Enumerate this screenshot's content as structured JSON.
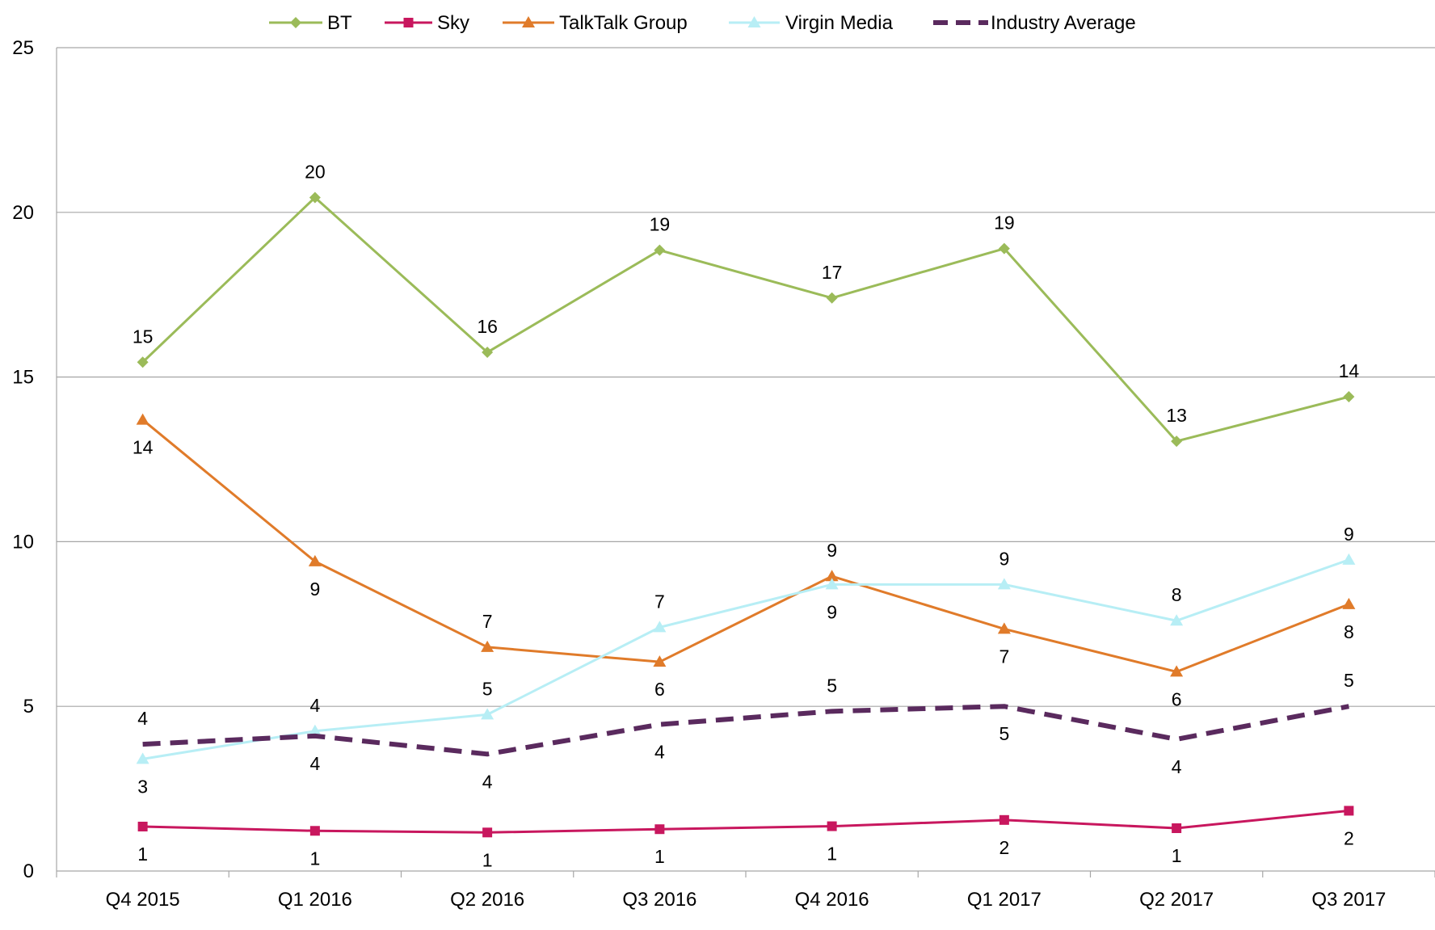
{
  "chart_data": {
    "type": "line",
    "title": "",
    "xlabel": "",
    "ylabel": "",
    "categories": [
      "Q4 2015",
      "Q1 2016",
      "Q2 2016",
      "Q3 2016",
      "Q4 2016",
      "Q1 2017",
      "Q2 2017",
      "Q3 2017"
    ],
    "ylim": [
      0,
      25
    ],
    "yticks": [
      0,
      5,
      10,
      15,
      20,
      25
    ],
    "grid": true,
    "legend_position": "top",
    "series": [
      {
        "name": "BT",
        "color": "#9BBB59",
        "marker": "diamond",
        "dashed": false,
        "values": [
          15.45,
          20.45,
          15.75,
          18.85,
          17.4,
          18.9,
          13.05,
          14.4
        ],
        "labels": [
          "15",
          "20",
          "16",
          "19",
          "17",
          "19",
          "13",
          "14"
        ],
        "label_pos": [
          "above",
          "above",
          "above",
          "above",
          "above",
          "above",
          "above",
          "above"
        ]
      },
      {
        "name": "Sky",
        "color": "#C8175E",
        "marker": "square",
        "dashed": false,
        "values": [
          1.35,
          1.22,
          1.17,
          1.27,
          1.36,
          1.55,
          1.3,
          1.83
        ],
        "labels": [
          "1",
          "1",
          "1",
          "1",
          "1",
          "2",
          "1",
          "2"
        ],
        "label_pos": [
          "below",
          "below",
          "below",
          "below",
          "below",
          "below",
          "below",
          "below"
        ]
      },
      {
        "name": "TalkTalk Group",
        "color": "#E07B2A",
        "marker": "triangle",
        "dashed": false,
        "values": [
          13.7,
          9.4,
          6.8,
          6.35,
          8.95,
          7.35,
          6.05,
          8.1
        ],
        "labels": [
          "14",
          "9",
          "7",
          "6",
          "9",
          "7",
          "6",
          "8"
        ],
        "label_pos": [
          "below",
          "below",
          "above",
          "below",
          "above",
          "below",
          "below",
          "below"
        ]
      },
      {
        "name": "Virgin Media",
        "color": "#B7EEF5",
        "marker": "triangle",
        "dashed": false,
        "values": [
          3.4,
          4.25,
          4.75,
          7.4,
          8.7,
          8.7,
          7.6,
          9.45
        ],
        "labels": [
          "3",
          "4",
          "5",
          "7",
          "9",
          "9",
          "8",
          "9"
        ],
        "label_pos": [
          "below",
          "above",
          "above",
          "above",
          "below",
          "above",
          "above",
          "above"
        ]
      },
      {
        "name": "Industry Average",
        "color": "#5A2A5E",
        "marker": "none",
        "dashed": true,
        "values": [
          3.85,
          4.1,
          3.55,
          4.45,
          4.85,
          5.0,
          4.0,
          5.0
        ],
        "labels": [
          "4",
          "4",
          "4",
          "4",
          "5",
          "5",
          "4",
          "5"
        ],
        "label_pos": [
          "above",
          "below",
          "below",
          "below",
          "above",
          "below",
          "below",
          "above"
        ]
      }
    ]
  }
}
